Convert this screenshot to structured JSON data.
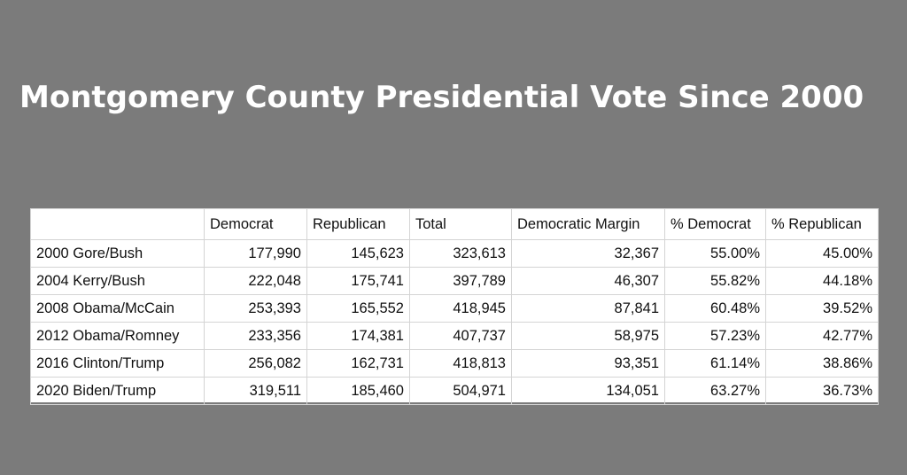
{
  "page": {
    "title": "Montgomery County Presidential Vote Since 2000",
    "background_color": "#7b7b7b"
  },
  "chart_data": {
    "type": "table",
    "columns": [
      "",
      "Democrat",
      "Republican",
      "Total",
      "Democratic Margin",
      "% Democrat",
      "% Republican"
    ],
    "rows": [
      [
        "2000 Gore/Bush",
        "177,990",
        "145,623",
        "323,613",
        "32,367",
        "55.00%",
        "45.00%"
      ],
      [
        "2004 Kerry/Bush",
        "222,048",
        "175,741",
        "397,789",
        "46,307",
        "55.82%",
        "44.18%"
      ],
      [
        "2008 Obama/McCain",
        "253,393",
        "165,552",
        "418,945",
        "87,841",
        "60.48%",
        "39.52%"
      ],
      [
        "2012 Obama/Romney",
        "233,356",
        "174,381",
        "407,737",
        "58,975",
        "57.23%",
        "42.77%"
      ],
      [
        "2016 Clinton/Trump",
        "256,082",
        "162,731",
        "418,813",
        "93,351",
        "61.14%",
        "38.86%"
      ],
      [
        "2020 Biden/Trump",
        "319,511",
        "185,460",
        "504,971",
        "134,051",
        "63.27%",
        "36.73%"
      ]
    ]
  }
}
